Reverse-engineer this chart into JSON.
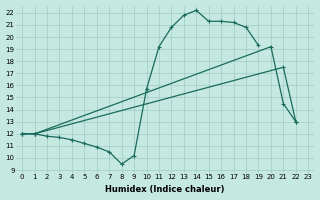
{
  "background_color": "#c5e8e0",
  "grid_color": "#a0ccc4",
  "line_color": "#1a6b5e",
  "xlabel": "Humidex (Indice chaleur)",
  "xlim": [
    -0.5,
    23.5
  ],
  "ylim": [
    8.8,
    22.6
  ],
  "yticks": [
    9,
    10,
    11,
    12,
    13,
    14,
    15,
    16,
    17,
    18,
    19,
    20,
    21,
    22
  ],
  "xticks": [
    0,
    1,
    2,
    3,
    4,
    5,
    6,
    7,
    8,
    9,
    10,
    11,
    12,
    13,
    14,
    15,
    16,
    17,
    18,
    19,
    20,
    21,
    22,
    23
  ],
  "line1_x": [
    0,
    1,
    2,
    3,
    4,
    5,
    6,
    7,
    8,
    9,
    10,
    11,
    12,
    13,
    14,
    15,
    16,
    17,
    18,
    19
  ],
  "line1_y": [
    12,
    12,
    11.8,
    11.7,
    11.5,
    11.2,
    10.9,
    10.5,
    9.5,
    10.2,
    15.7,
    19.2,
    20.8,
    21.8,
    22.2,
    21.3,
    21.3,
    21.2,
    20.8,
    19.3
  ],
  "line2_x": [
    0,
    1,
    20,
    21,
    22
  ],
  "line2_y": [
    12,
    12,
    19.2,
    14.5,
    13.0
  ],
  "line3_x": [
    0,
    1,
    21,
    22
  ],
  "line3_y": [
    12,
    12,
    17.5,
    13.0
  ],
  "ms": 3,
  "lw": 0.9,
  "tick_fontsize": 5.0,
  "xlabel_fontsize": 6.0
}
